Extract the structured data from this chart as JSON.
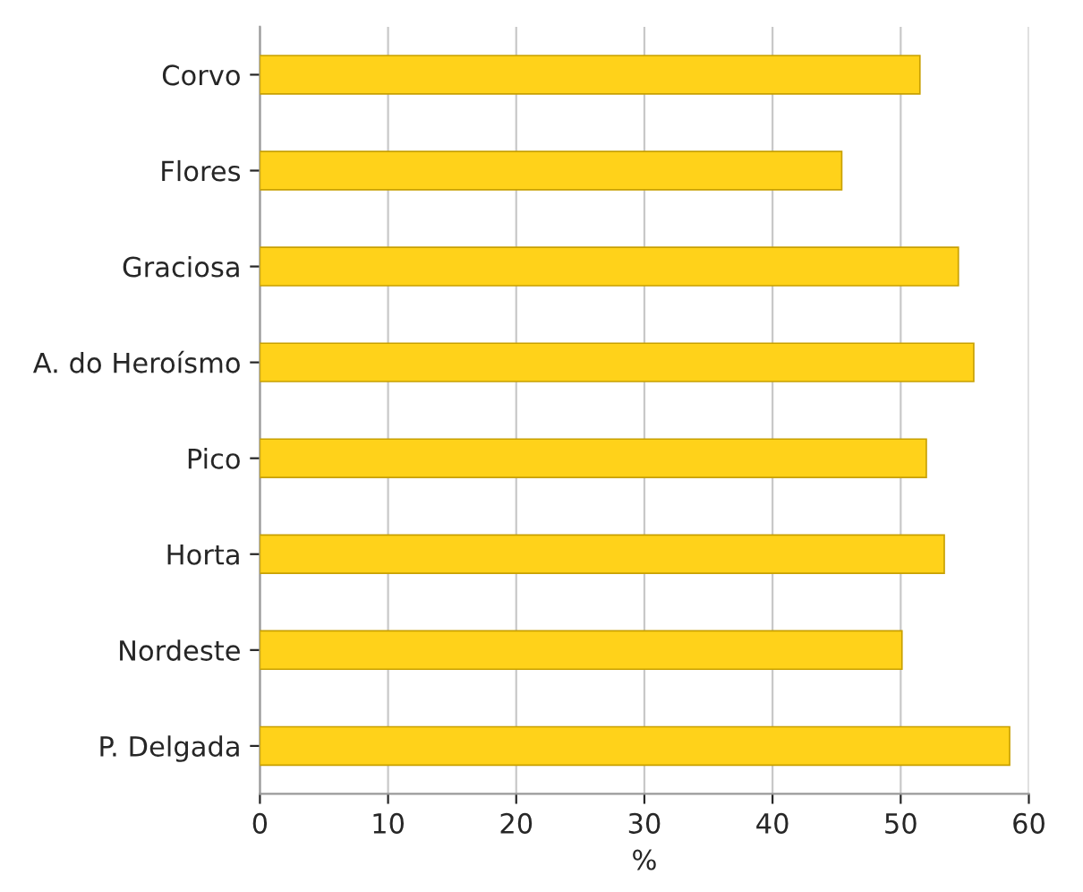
{
  "chart_data": {
    "type": "bar",
    "orientation": "horizontal",
    "xlabel": "%",
    "categories": [
      "Corvo",
      "Flores",
      "Graciosa",
      "A. do Heroísmo",
      "Pico",
      "Horta",
      "Nordeste",
      "P. Delgada"
    ],
    "values": [
      51.5,
      45.4,
      54.5,
      55.7,
      52.0,
      53.4,
      50.1,
      58.5
    ],
    "color": "#ffd21a",
    "xlim": [
      0,
      60
    ],
    "xticks": [
      0,
      10,
      20,
      30,
      40,
      50,
      60
    ],
    "grid": "x",
    "legend": false
  }
}
